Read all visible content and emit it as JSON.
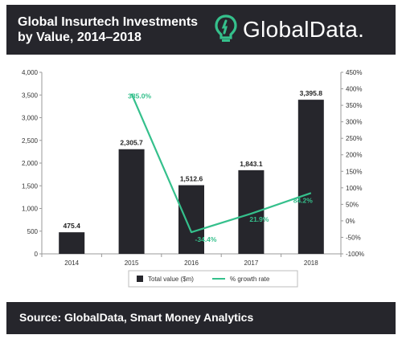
{
  "header": {
    "title_line1": "Global Insurtech Investments",
    "title_line2": "by Value, 2014–2018",
    "logo_text": "GlobalData.",
    "logo_icon": "globaldata-bulb-icon"
  },
  "footer": {
    "source": "Source: GlobalData, Smart Money Analytics"
  },
  "colors": {
    "header_bg": "#26262c",
    "bar": "#26262c",
    "line": "#35c08c",
    "logo_accent": "#35c08c"
  },
  "chart_data": {
    "type": "bar",
    "categories": [
      "2014",
      "2015",
      "2016",
      "2017",
      "2018"
    ],
    "series": [
      {
        "name": "Total value ($m)",
        "type": "bar",
        "axis": "left",
        "values": [
          475.4,
          2305.7,
          1512.6,
          1843.1,
          3395.8
        ],
        "labels": [
          "475.4",
          "2,305.7",
          "1,512.6",
          "1,843.1",
          "3,395.8"
        ]
      },
      {
        "name": "% growth rate",
        "type": "line",
        "axis": "right",
        "values": [
          null,
          385.0,
          -34.4,
          21.9,
          84.2
        ],
        "labels": [
          "",
          "385.0%",
          "-34.4%",
          "21.9%",
          "84.2%"
        ]
      }
    ],
    "y_left": {
      "min": 0,
      "max": 4000,
      "step": 500,
      "ticks": [
        "0",
        "500",
        "1,000",
        "1,500",
        "2,000",
        "2,500",
        "3,000",
        "3,500",
        "4,000"
      ]
    },
    "y_right": {
      "min": -100,
      "max": 450,
      "step": 50,
      "ticks": [
        "-100%",
        "-50%",
        "0%",
        "50%",
        "100%",
        "150%",
        "200%",
        "250%",
        "300%",
        "350%",
        "400%",
        "450%"
      ]
    },
    "legend": [
      "Total value ($m)",
      "% growth rate"
    ],
    "legend_position": "bottom"
  }
}
